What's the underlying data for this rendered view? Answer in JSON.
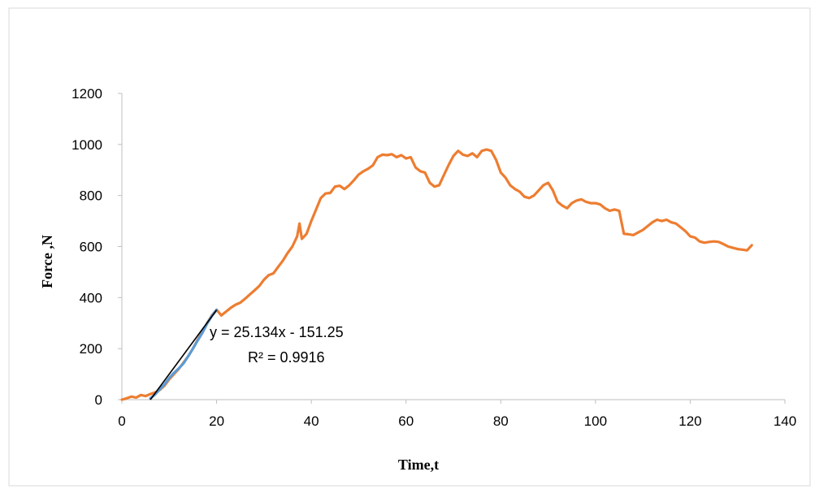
{
  "chart_data": {
    "type": "line",
    "title": "",
    "xlabel": "Time,t",
    "ylabel": "Force ,N",
    "xlim": [
      0,
      140
    ],
    "ylim": [
      0,
      1200
    ],
    "x_ticks": [
      "0",
      "20",
      "40",
      "60",
      "80",
      "100",
      "120",
      "140"
    ],
    "y_ticks": [
      "0",
      "200",
      "400",
      "600",
      "800",
      "1000",
      "1200"
    ],
    "grid": false,
    "legend": "none",
    "series": [
      {
        "color": "#ed7d31",
        "points": [
          [
            0,
            0
          ],
          [
            1,
            5
          ],
          [
            2,
            12
          ],
          [
            3,
            8
          ],
          [
            4,
            18
          ],
          [
            5,
            14
          ],
          [
            6,
            22
          ],
          [
            7,
            28
          ],
          [
            8,
            38
          ],
          [
            9,
            55
          ],
          [
            10,
            80
          ],
          [
            11,
            100
          ],
          [
            12,
            120
          ],
          [
            13,
            145
          ],
          [
            14,
            170
          ],
          [
            15,
            200
          ],
          [
            16,
            235
          ],
          [
            17,
            265
          ],
          [
            18,
            300
          ],
          [
            19,
            330
          ],
          [
            20,
            352
          ],
          [
            21,
            330
          ],
          [
            22,
            345
          ],
          [
            23,
            360
          ],
          [
            24,
            372
          ],
          [
            25,
            380
          ],
          [
            26,
            395
          ],
          [
            27,
            412
          ],
          [
            28,
            428
          ],
          [
            29,
            445
          ],
          [
            30,
            470
          ],
          [
            31,
            488
          ],
          [
            32,
            495
          ],
          [
            33,
            520
          ],
          [
            34,
            545
          ],
          [
            35,
            575
          ],
          [
            36,
            600
          ],
          [
            37,
            640
          ],
          [
            37.5,
            690
          ],
          [
            38,
            630
          ],
          [
            39,
            650
          ],
          [
            40,
            700
          ],
          [
            41,
            745
          ],
          [
            42,
            790
          ],
          [
            43,
            808
          ],
          [
            44,
            810
          ],
          [
            45,
            835
          ],
          [
            46,
            838
          ],
          [
            47,
            825
          ],
          [
            48,
            840
          ],
          [
            49,
            860
          ],
          [
            50,
            882
          ],
          [
            51,
            895
          ],
          [
            52,
            905
          ],
          [
            53,
            918
          ],
          [
            54,
            950
          ],
          [
            55,
            960
          ],
          [
            56,
            958
          ],
          [
            57,
            962
          ],
          [
            58,
            950
          ],
          [
            59,
            958
          ],
          [
            60,
            945
          ],
          [
            61,
            950
          ],
          [
            62,
            910
          ],
          [
            63,
            895
          ],
          [
            64,
            890
          ],
          [
            65,
            850
          ],
          [
            66,
            835
          ],
          [
            67,
            840
          ],
          [
            68,
            880
          ],
          [
            69,
            920
          ],
          [
            70,
            955
          ],
          [
            71,
            975
          ],
          [
            72,
            960
          ],
          [
            73,
            955
          ],
          [
            74,
            965
          ],
          [
            75,
            950
          ],
          [
            76,
            975
          ],
          [
            77,
            980
          ],
          [
            78,
            975
          ],
          [
            79,
            940
          ],
          [
            80,
            890
          ],
          [
            81,
            870
          ],
          [
            82,
            840
          ],
          [
            83,
            825
          ],
          [
            84,
            815
          ],
          [
            85,
            795
          ],
          [
            86,
            790
          ],
          [
            87,
            800
          ],
          [
            88,
            820
          ],
          [
            89,
            840
          ],
          [
            90,
            850
          ],
          [
            91,
            820
          ],
          [
            92,
            775
          ],
          [
            93,
            760
          ],
          [
            94,
            750
          ],
          [
            95,
            770
          ],
          [
            96,
            780
          ],
          [
            97,
            785
          ],
          [
            98,
            775
          ],
          [
            99,
            770
          ],
          [
            100,
            770
          ],
          [
            101,
            765
          ],
          [
            102,
            750
          ],
          [
            103,
            740
          ],
          [
            104,
            745
          ],
          [
            105,
            740
          ],
          [
            106,
            650
          ],
          [
            107,
            648
          ],
          [
            108,
            645
          ],
          [
            109,
            655
          ],
          [
            110,
            665
          ],
          [
            111,
            680
          ],
          [
            112,
            695
          ],
          [
            113,
            705
          ],
          [
            114,
            700
          ],
          [
            115,
            705
          ],
          [
            116,
            695
          ],
          [
            117,
            690
          ],
          [
            118,
            675
          ],
          [
            119,
            660
          ],
          [
            120,
            640
          ],
          [
            121,
            635
          ],
          [
            122,
            620
          ],
          [
            123,
            615
          ],
          [
            124,
            618
          ],
          [
            125,
            620
          ],
          [
            126,
            618
          ],
          [
            127,
            610
          ],
          [
            128,
            600
          ],
          [
            129,
            595
          ],
          [
            130,
            590
          ],
          [
            131,
            588
          ],
          [
            132,
            585
          ],
          [
            133,
            605
          ]
        ]
      },
      {
        "color": "#5b9bd5",
        "points": [
          [
            6,
            5
          ],
          [
            7,
            20
          ],
          [
            8,
            40
          ],
          [
            9,
            60
          ],
          [
            10,
            85
          ],
          [
            11,
            105
          ],
          [
            12,
            122
          ],
          [
            13,
            142
          ],
          [
            14,
            170
          ],
          [
            15,
            200
          ],
          [
            16,
            232
          ],
          [
            17,
            262
          ],
          [
            18,
            298
          ],
          [
            19,
            328
          ],
          [
            20,
            352
          ]
        ]
      }
    ],
    "trendline": {
      "color": "#000000",
      "slope": 25.134,
      "intercept": -151.25,
      "x_range": [
        6,
        20
      ],
      "equation": "y = 25.134x - 151.25",
      "r_squared": "R² = 0.9916"
    }
  }
}
